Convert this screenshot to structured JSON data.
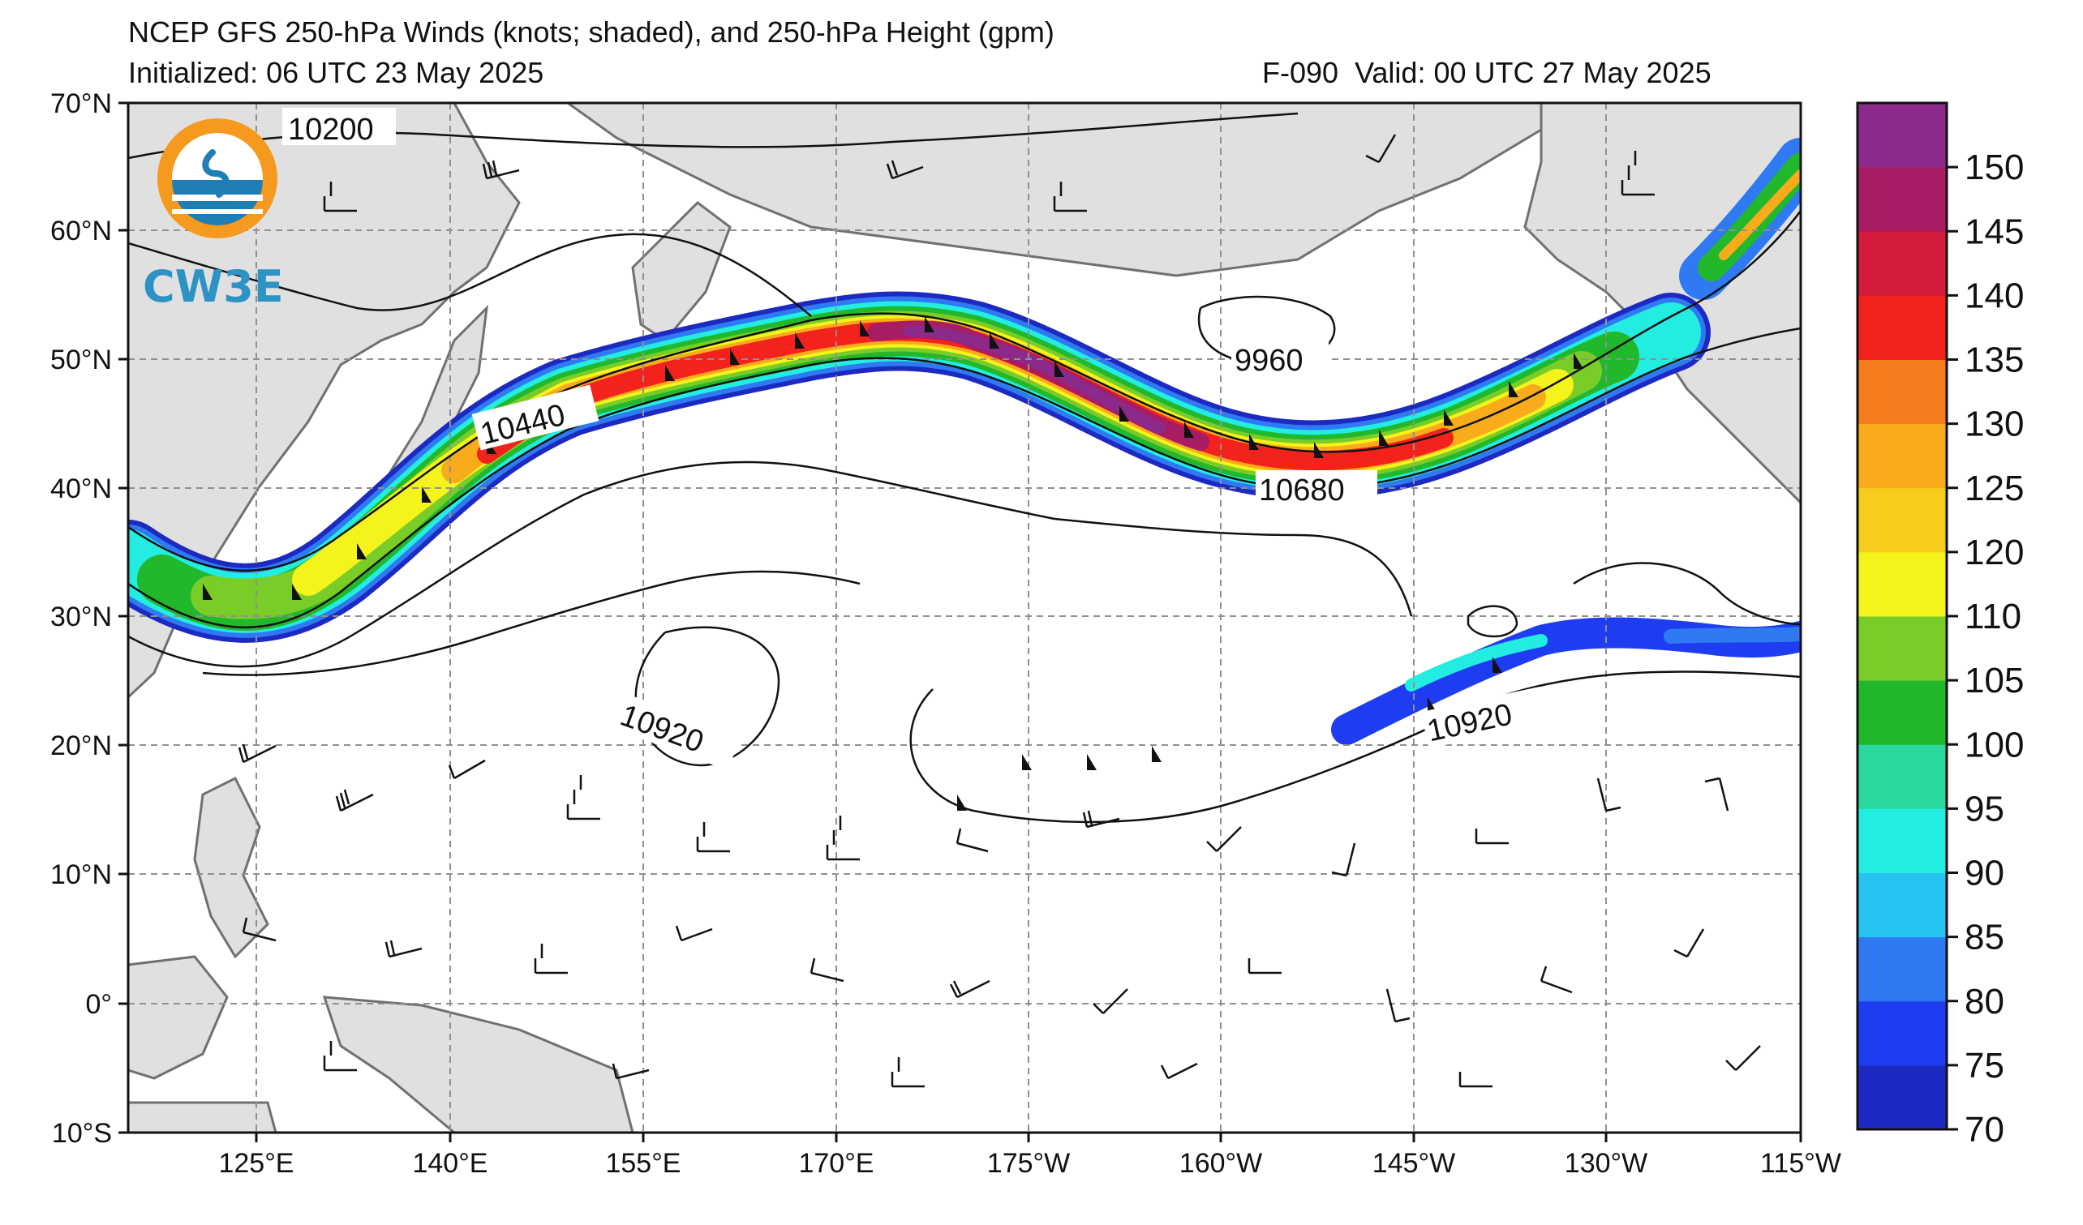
{
  "header": {
    "title": "NCEP GFS 250-hPa Winds (knots; shaded), and 250-hPa Height (gpm)",
    "initialized": "Initialized: 06 UTC 23 May 2025",
    "forecast_hour": "F-090",
    "valid": "Valid: 00 UTC 27 May 2025"
  },
  "logo": {
    "text": "CW3E"
  },
  "axes": {
    "lat_labels": [
      "70°N",
      "60°N",
      "50°N",
      "40°N",
      "30°N",
      "20°N",
      "10°N",
      "0°",
      "10°S"
    ],
    "lon_labels": [
      "125°E",
      "140°E",
      "155°E",
      "170°E",
      "175°W",
      "160°W",
      "145°W",
      "130°W",
      "115°W"
    ]
  },
  "contour_labels": [
    "10200",
    "10440",
    "9960",
    "10680",
    "10920",
    "10920"
  ],
  "colorbar": {
    "labels": [
      "70",
      "75",
      "80",
      "85",
      "90",
      "95",
      "100",
      "105",
      "110",
      "120",
      "125",
      "130",
      "135",
      "140",
      "145",
      "150"
    ],
    "colors": [
      "#1d2ac2",
      "#1f3df0",
      "#2f79f2",
      "#27c4f2",
      "#22ede0",
      "#2ad8a0",
      "#22b82c",
      "#7acc28",
      "#f4f41c",
      "#f8cc1c",
      "#f8ac1c",
      "#f67c1c",
      "#f4221c",
      "#d41c3c",
      "#a81c64",
      "#8c2a8c"
    ]
  }
}
